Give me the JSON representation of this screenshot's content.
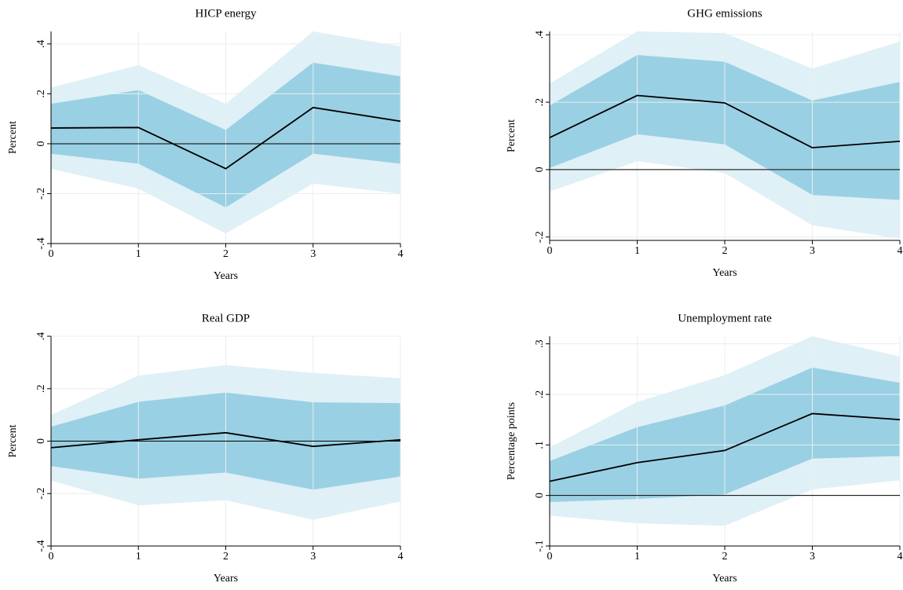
{
  "chart_data": [
    {
      "type": "line",
      "title": "HICP energy",
      "xlabel": "Years",
      "ylabel": "Percent",
      "x": [
        0,
        1,
        2,
        3,
        4
      ],
      "xlim": [
        0,
        4
      ],
      "xticks": [
        0,
        1,
        2,
        3,
        4
      ],
      "ylim": [
        -0.4,
        0.45
      ],
      "yticks": [
        {
          "value": -0.4,
          "label": "-.4"
        },
        {
          "value": -0.2,
          "label": "-.2"
        },
        0,
        {
          "value": 0.2,
          "label": ".2"
        },
        {
          "value": 0.4,
          "label": ".4"
        }
      ],
      "grid": true,
      "reference_line": 0,
      "bands": [
        {
          "color": "#dff0f6",
          "upper": [
            0.225,
            0.315,
            0.16,
            0.45,
            0.39
          ],
          "lower": [
            -0.1,
            -0.18,
            -0.36,
            -0.16,
            -0.2
          ]
        },
        {
          "color": "#9ad0e3",
          "upper": [
            0.16,
            0.215,
            0.055,
            0.325,
            0.27
          ],
          "lower": [
            -0.04,
            -0.08,
            -0.255,
            -0.04,
            -0.08
          ]
        }
      ],
      "series": [
        {
          "color": "#000000",
          "values": [
            0.063,
            0.065,
            -0.1,
            0.145,
            0.09
          ]
        }
      ]
    },
    {
      "type": "line",
      "title": "GHG emissions",
      "xlabel": "Years",
      "ylabel": "Percent",
      "x": [
        0,
        1,
        2,
        3,
        4
      ],
      "xlim": [
        0,
        4
      ],
      "xticks": [
        0,
        1,
        2,
        3,
        4
      ],
      "ylim": [
        -0.21,
        0.41
      ],
      "yticks": [
        {
          "value": -0.2,
          "label": "-.2"
        },
        0,
        {
          "value": 0.2,
          "label": ".2"
        },
        {
          "value": 0.4,
          "label": ".4"
        }
      ],
      "grid": true,
      "reference_line": 0,
      "bands": [
        {
          "color": "#dff0f6",
          "upper": [
            0.255,
            0.41,
            0.405,
            0.3,
            0.38
          ],
          "lower": [
            -0.065,
            0.025,
            -0.01,
            -0.165,
            -0.205
          ]
        },
        {
          "color": "#9ad0e3",
          "upper": [
            0.19,
            0.34,
            0.32,
            0.205,
            0.26
          ],
          "lower": [
            0.005,
            0.105,
            0.075,
            -0.075,
            -0.09
          ]
        }
      ],
      "series": [
        {
          "color": "#000000",
          "values": [
            0.095,
            0.22,
            0.198,
            0.065,
            0.084
          ]
        }
      ]
    },
    {
      "type": "line",
      "title": "Real GDP",
      "xlabel": "Years",
      "ylabel": "Percent",
      "x": [
        0,
        1,
        2,
        3,
        4
      ],
      "xlim": [
        0,
        4
      ],
      "xticks": [
        0,
        1,
        2,
        3,
        4
      ],
      "ylim": [
        -0.4,
        0.4
      ],
      "yticks": [
        {
          "value": -0.4,
          "label": "-.4"
        },
        {
          "value": -0.2,
          "label": "-.2"
        },
        0,
        {
          "value": 0.2,
          "label": ".2"
        },
        {
          "value": 0.4,
          "label": ".4"
        }
      ],
      "grid": true,
      "reference_line": 0,
      "bands": [
        {
          "color": "#dff0f6",
          "upper": [
            0.1,
            0.25,
            0.29,
            0.26,
            0.24
          ],
          "lower": [
            -0.15,
            -0.245,
            -0.225,
            -0.3,
            -0.23
          ]
        },
        {
          "color": "#9ad0e3",
          "upper": [
            0.055,
            0.15,
            0.185,
            0.148,
            0.145
          ],
          "lower": [
            -0.095,
            -0.143,
            -0.12,
            -0.185,
            -0.135
          ]
        }
      ],
      "series": [
        {
          "color": "#000000",
          "values": [
            -0.025,
            0.005,
            0.032,
            -0.02,
            0.005
          ]
        }
      ]
    },
    {
      "type": "line",
      "title": "Unemployment rate",
      "xlabel": "Years",
      "ylabel": "Percentage points",
      "x": [
        0,
        1,
        2,
        3,
        4
      ],
      "xlim": [
        0,
        4
      ],
      "xticks": [
        0,
        1,
        2,
        3,
        4
      ],
      "ylim": [
        -0.1,
        0.315
      ],
      "yticks": [
        {
          "value": -0.1,
          "label": "-.1"
        },
        0,
        {
          "value": 0.1,
          "label": ".1"
        },
        {
          "value": 0.2,
          "label": ".2"
        },
        {
          "value": 0.3,
          "label": ".3"
        }
      ],
      "grid": true,
      "reference_line": 0,
      "bands": [
        {
          "color": "#dff0f6",
          "upper": [
            0.095,
            0.185,
            0.238,
            0.315,
            0.275
          ],
          "lower": [
            -0.04,
            -0.055,
            -0.06,
            0.012,
            0.03
          ]
        },
        {
          "color": "#9ad0e3",
          "upper": [
            0.068,
            0.135,
            0.178,
            0.253,
            0.223
          ],
          "lower": [
            -0.013,
            -0.007,
            0.002,
            0.073,
            0.078
          ]
        }
      ],
      "series": [
        {
          "color": "#000000",
          "values": [
            0.028,
            0.065,
            0.089,
            0.162,
            0.15
          ]
        }
      ]
    }
  ]
}
